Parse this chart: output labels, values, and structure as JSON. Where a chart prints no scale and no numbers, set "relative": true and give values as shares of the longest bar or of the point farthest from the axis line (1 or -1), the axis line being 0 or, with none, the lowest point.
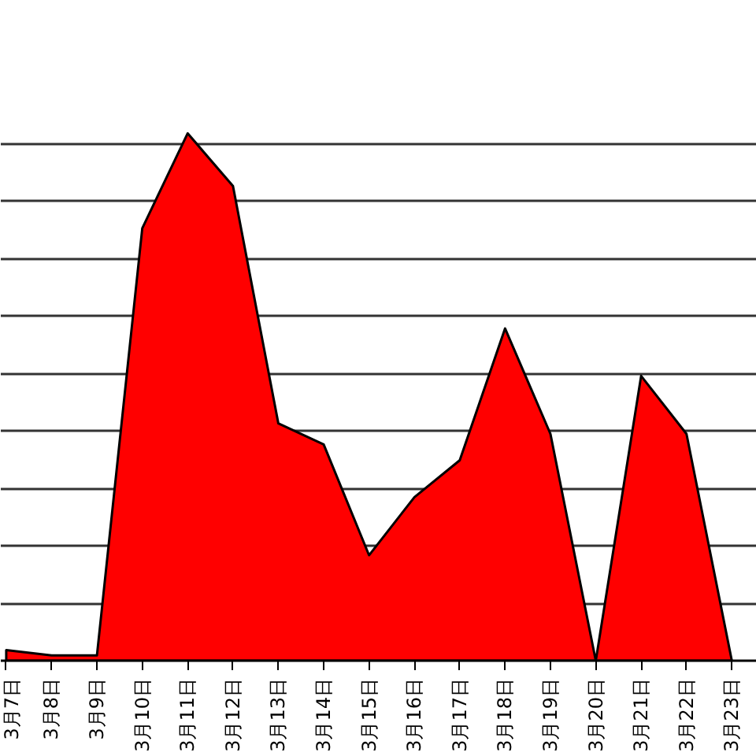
{
  "chart_data": {
    "type": "area",
    "relative": true,
    "grid": "y",
    "categories": [
      "3月7日",
      "3月8日",
      "3月9日",
      "3月10日",
      "3月11日",
      "3月12日",
      "3月13日",
      "3月14日",
      "3月15日",
      "3月16日",
      "3月17日",
      "3月18日",
      "3月19日",
      "3月20日",
      "3月21日",
      "3月22日",
      "3月23日"
    ],
    "series": [
      {
        "color": "#ff0000",
        "values": [
          0.02,
          0.01,
          0.01,
          0.82,
          1,
          0.9,
          0.45,
          0.41,
          0.2,
          0.31,
          0.38,
          0.63,
          0.43,
          0,
          0.54,
          0.43,
          0
        ]
      }
    ]
  }
}
